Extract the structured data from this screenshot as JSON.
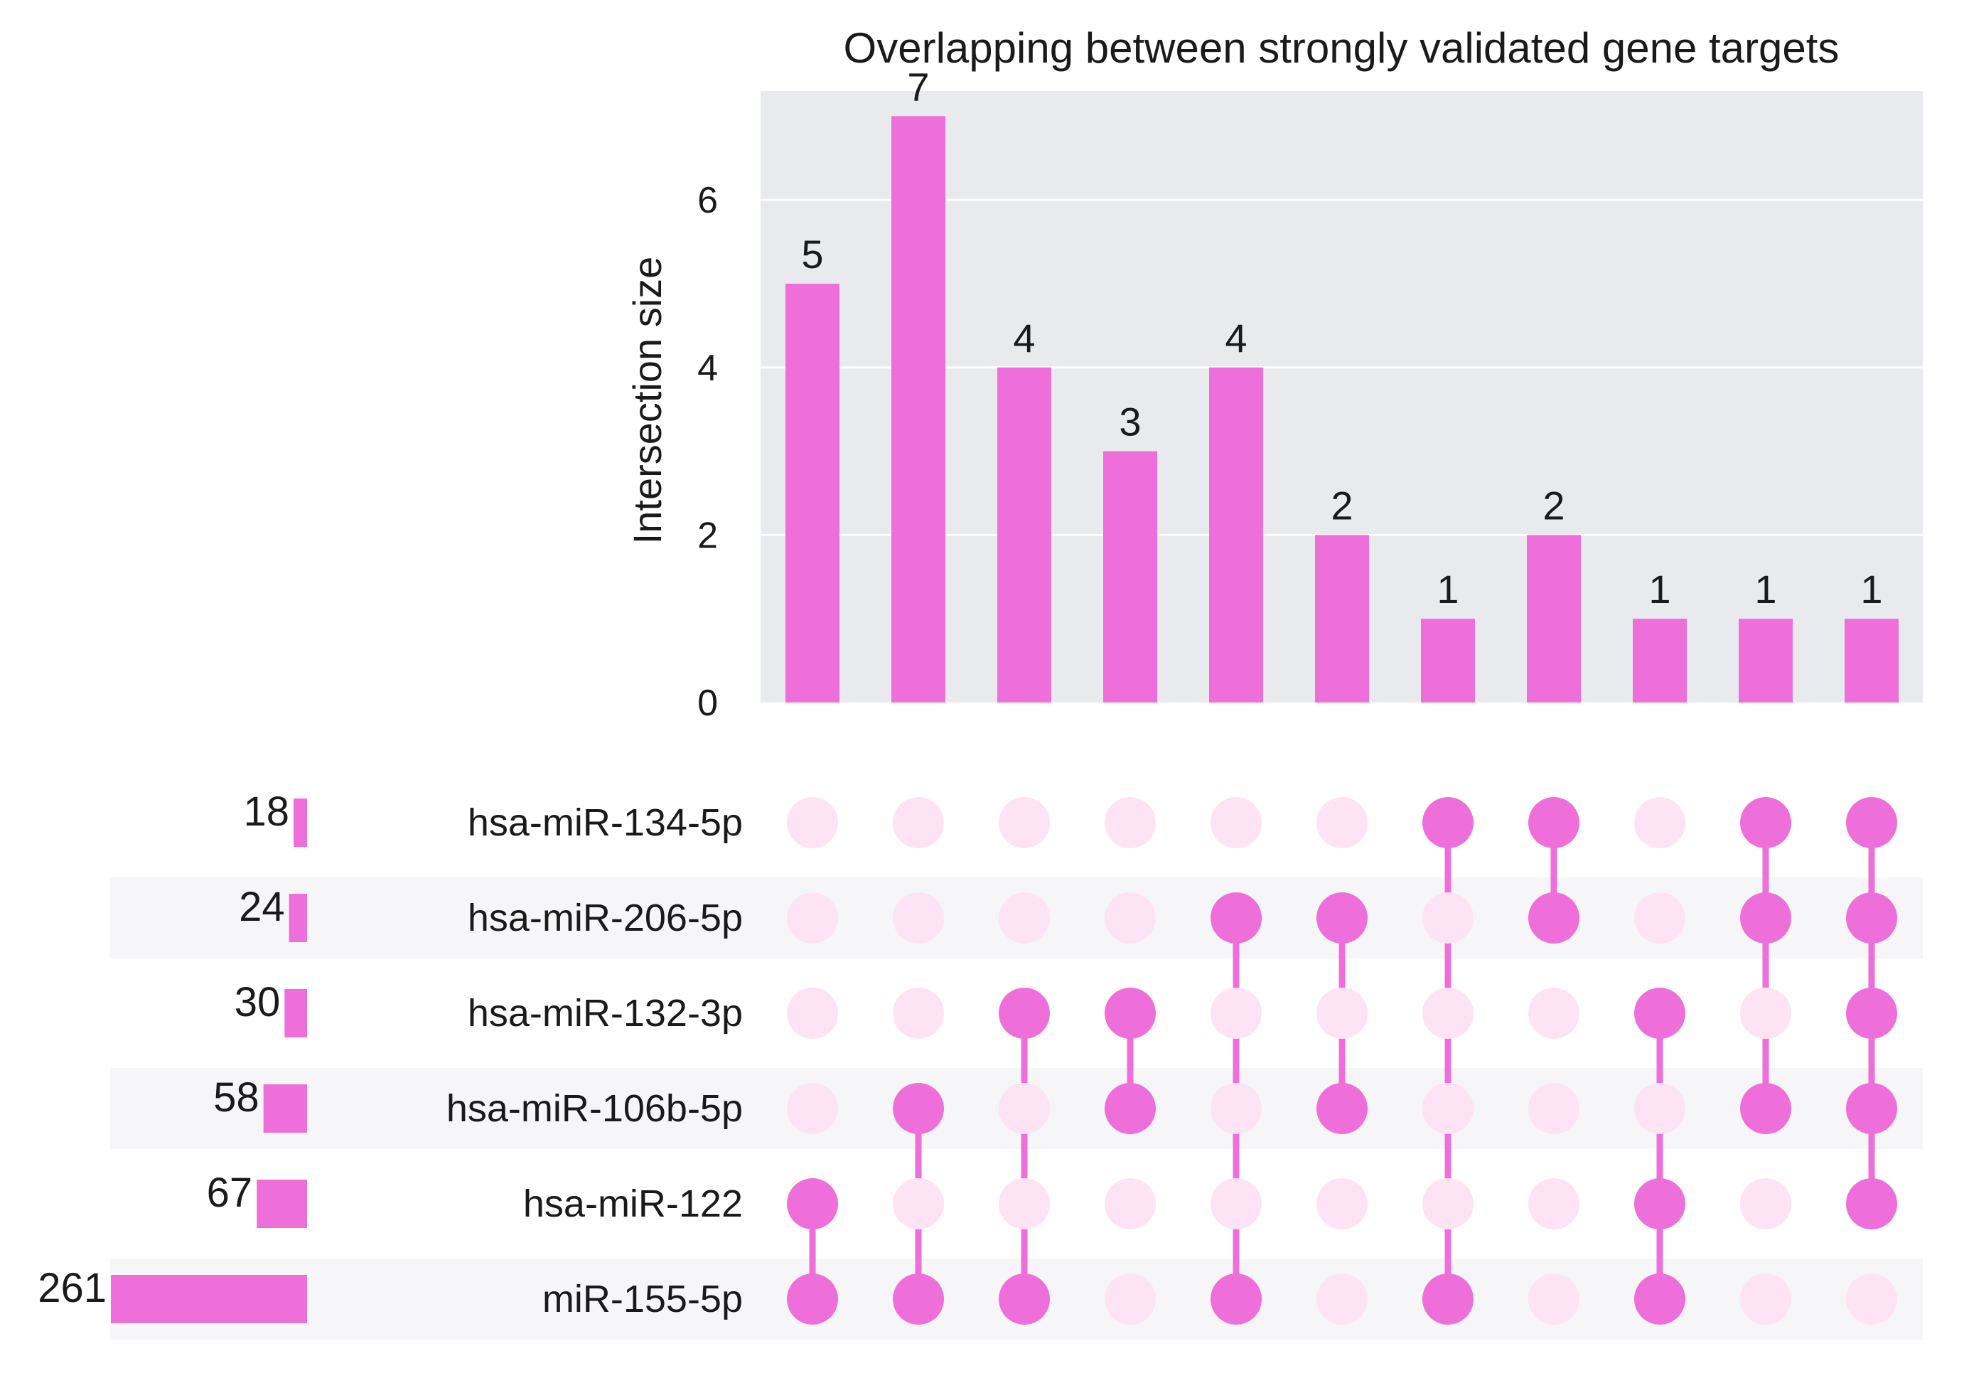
{
  "chart_data": {
    "type": "bar",
    "subtype": "upset",
    "title": "Overlapping between strongly validated gene targets",
    "ylabel": "Intersection size",
    "ylim": [
      0,
      7.3
    ],
    "yticks": [
      0,
      2,
      4,
      6
    ],
    "grid": true,
    "values": [
      5,
      7,
      4,
      3,
      4,
      2,
      1,
      2,
      1,
      1,
      1
    ],
    "sets": [
      {
        "name": "hsa-miR-134-5p",
        "size": 18
      },
      {
        "name": "hsa-miR-206-5p",
        "size": 24
      },
      {
        "name": "hsa-miR-132-3p",
        "size": 30
      },
      {
        "name": "hsa-miR-106b-5p",
        "size": 58
      },
      {
        "name": "hsa-miR-122",
        "size": 67
      },
      {
        "name": "miR-155-5p",
        "size": 261
      }
    ],
    "memberships": [
      [
        "hsa-miR-122",
        "miR-155-5p"
      ],
      [
        "hsa-miR-106b-5p",
        "miR-155-5p"
      ],
      [
        "hsa-miR-132-3p",
        "miR-155-5p"
      ],
      [
        "hsa-miR-132-3p",
        "hsa-miR-106b-5p"
      ],
      [
        "hsa-miR-206-5p",
        "miR-155-5p"
      ],
      [
        "hsa-miR-206-5p",
        "hsa-miR-106b-5p"
      ],
      [
        "hsa-miR-134-5p",
        "miR-155-5p"
      ],
      [
        "hsa-miR-134-5p",
        "hsa-miR-206-5p"
      ],
      [
        "hsa-miR-132-3p",
        "hsa-miR-122",
        "miR-155-5p"
      ],
      [
        "hsa-miR-134-5p",
        "hsa-miR-206-5p",
        "hsa-miR-106b-5p"
      ],
      [
        "hsa-miR-134-5p",
        "hsa-miR-206-5p",
        "hsa-miR-132-3p",
        "hsa-miR-106b-5p",
        "hsa-miR-122"
      ]
    ]
  },
  "colors": {
    "bar": "#ee6fd9",
    "dot_active": "#ee6fd9",
    "dot_inactive": "#fde3f4",
    "plot_background": "#e9eaee",
    "grid": "#ffffff",
    "matrix_stripe": "#f6f6f8",
    "text": "#1a1a1a"
  }
}
